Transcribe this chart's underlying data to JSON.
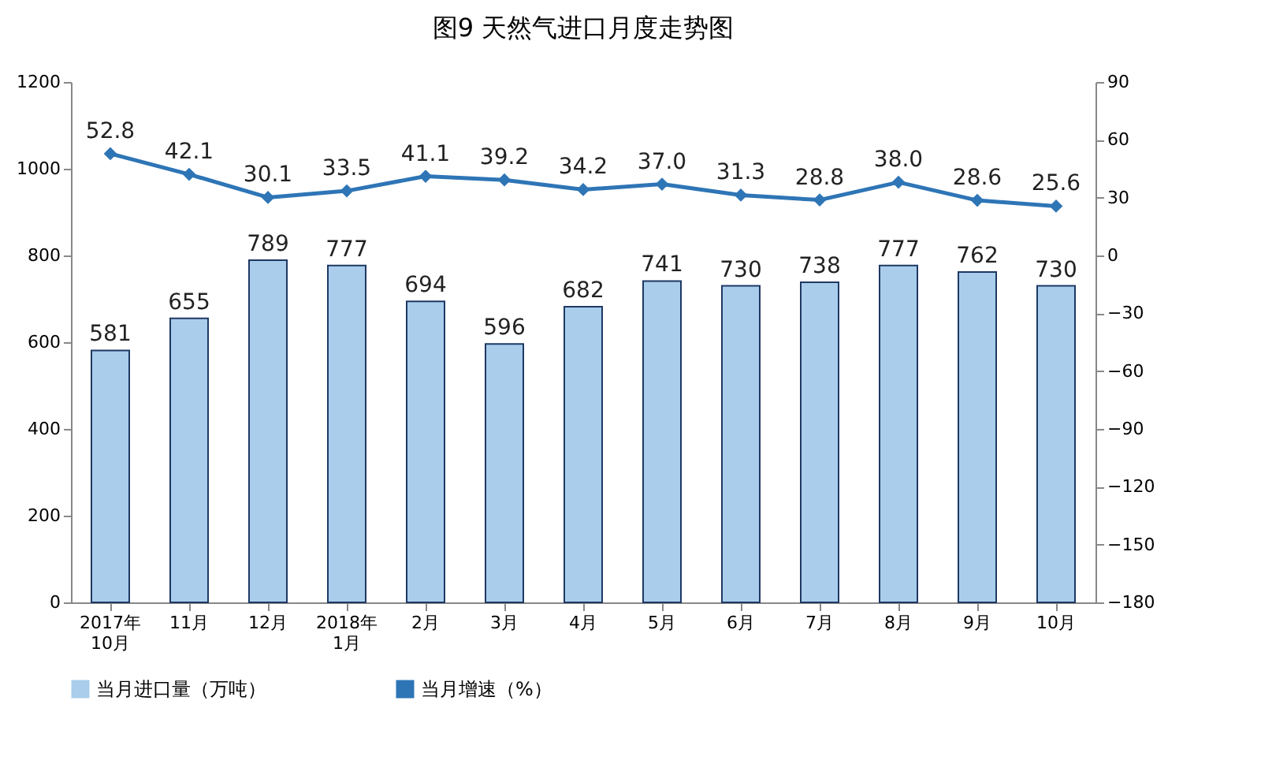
{
  "chart_data": {
    "type": "bar",
    "title": "图9  天然气进口月度走势图",
    "categories": [
      "2017年\n10月",
      "11月",
      "12月",
      "2018年\n1月",
      "2月",
      "3月",
      "4月",
      "5月",
      "6月",
      "7月",
      "8月",
      "9月",
      "10月"
    ],
    "series": [
      {
        "name": "当月进口量（万吨）",
        "color": "#a9cdeb",
        "values": [
          581,
          655,
          789,
          777,
          694,
          596,
          682,
          741,
          730,
          738,
          777,
          762,
          730
        ]
      },
      {
        "name": "当月增速（%）",
        "type": "line",
        "axis": "y2",
        "color": "#2e75b6",
        "values": [
          52.8,
          42.1,
          30.1,
          33.5,
          41.1,
          39.2,
          34.2,
          37.0,
          31.3,
          28.8,
          38.0,
          28.6,
          25.6
        ],
        "value_labels": [
          "52.8",
          "42.1",
          "30.1",
          "33.5",
          "41.1",
          "39.2",
          "34.2",
          "37.0",
          "31.3",
          "28.8",
          "38.0",
          "28.6",
          "25.6"
        ]
      }
    ],
    "ylim": [
      0,
      1200
    ],
    "yticks": [
      0,
      200,
      400,
      600,
      800,
      1000,
      1200
    ],
    "y2lim": [
      -180,
      90
    ],
    "y2ticks": [
      -180,
      -150,
      -120,
      -90,
      -60,
      -30,
      0,
      30,
      60,
      90
    ],
    "data_labels": true,
    "legend": "bottom",
    "marker": "diamond",
    "grid": false
  }
}
